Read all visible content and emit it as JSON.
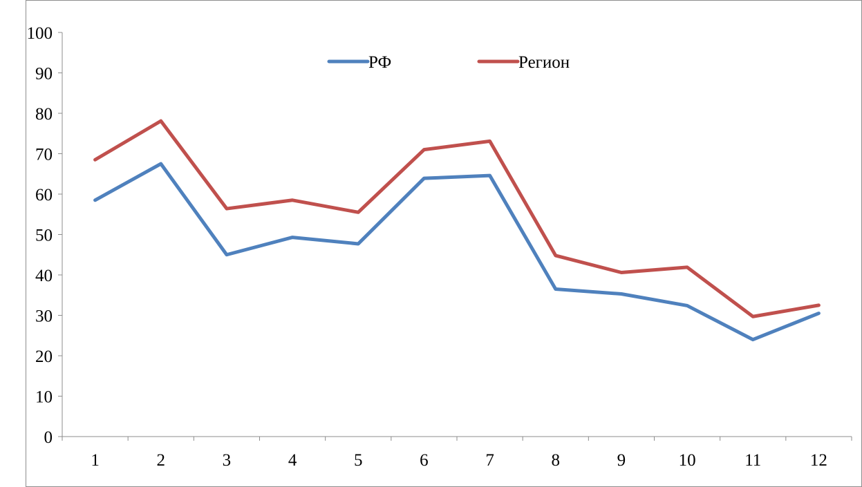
{
  "chart_data": {
    "type": "line",
    "title": "",
    "xlabel": "",
    "ylabel": "",
    "categories": [
      "1",
      "2",
      "3",
      "4",
      "5",
      "6",
      "7",
      "8",
      "9",
      "10",
      "11",
      "12"
    ],
    "ylim": [
      0,
      100
    ],
    "yticks": [
      "0",
      "10",
      "20",
      "30",
      "40",
      "50",
      "60",
      "70",
      "80",
      "90",
      "100"
    ],
    "grid": false,
    "legend_position": "top-center",
    "series": [
      {
        "name": "РФ",
        "color": "#4f81bd",
        "values": [
          58.5,
          67.5,
          45.0,
          49.3,
          47.7,
          63.9,
          64.6,
          36.5,
          35.3,
          32.4,
          24.0,
          30.5
        ]
      },
      {
        "name": "Регион",
        "color": "#c0504d",
        "values": [
          68.5,
          78.1,
          56.4,
          58.5,
          55.5,
          71.0,
          73.1,
          44.8,
          40.6,
          41.9,
          29.7,
          32.5
        ]
      }
    ]
  }
}
